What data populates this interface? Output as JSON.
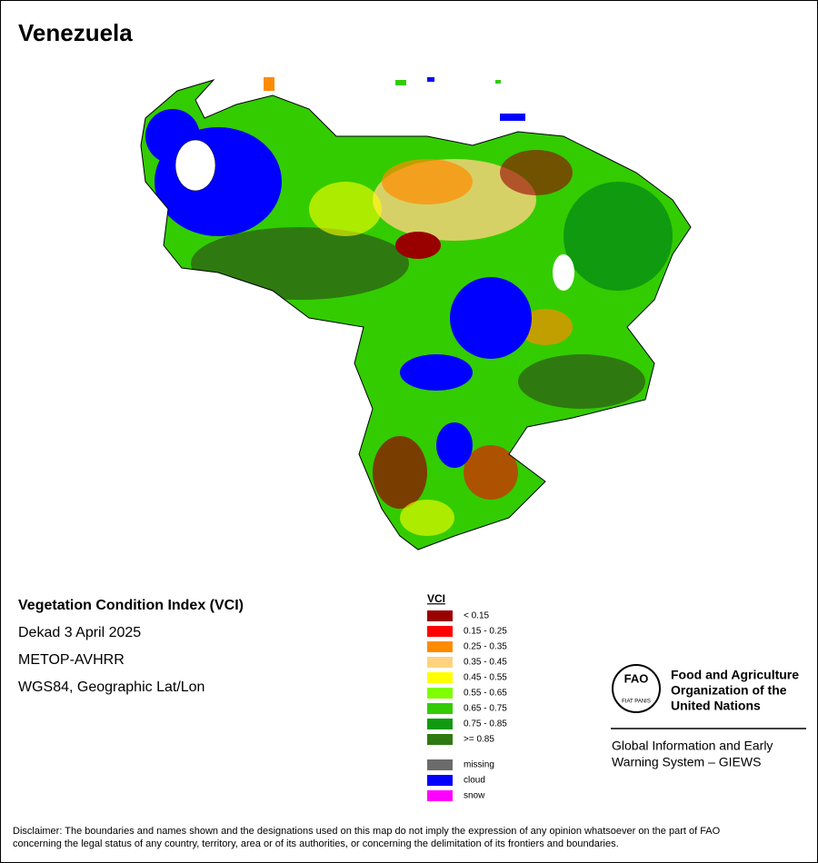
{
  "title": "Venezuela",
  "info": {
    "index_name": "Vegetation Condition Index (VCI)",
    "period": "Dekad 3 April 2025",
    "sensor": "METOP-AVHRR",
    "projection": "WGS84, Geographic Lat/Lon"
  },
  "legend": {
    "title": "VCI",
    "classes": [
      {
        "label": "< 0.15",
        "color": "#990000"
      },
      {
        "label": "0.15 - 0.25",
        "color": "#ff0000"
      },
      {
        "label": "0.25 - 0.35",
        "color": "#ff8c00"
      },
      {
        "label": "0.35 - 0.45",
        "color": "#ffd27f"
      },
      {
        "label": "0.45 - 0.55",
        "color": "#ffff00"
      },
      {
        "label": "0.55 - 0.65",
        "color": "#7fff00"
      },
      {
        "label": "0.65 - 0.75",
        "color": "#33cc00"
      },
      {
        "label": "0.75 - 0.85",
        "color": "#109a10"
      },
      {
        "label": ">= 0.85",
        "color": "#2e7a10"
      }
    ],
    "other": [
      {
        "label": "missing",
        "color": "#6b6b6b"
      },
      {
        "label": "cloud",
        "color": "#0000ff"
      },
      {
        "label": "snow",
        "color": "#ff00ff"
      }
    ]
  },
  "logo": {
    "letters": "FAO",
    "motto": "FIAT PANIS",
    "org_lines": [
      "Food and Agriculture",
      "Organization of the",
      "United Nations"
    ]
  },
  "system_lines": [
    "Global Information and Early",
    "Warning System – GIEWS"
  ],
  "disclaimer_lines": [
    "Disclaimer: The boundaries and names shown and the designations used on this map do not imply the expression of any opinion whatsoever on the part of FAO",
    "concerning the legal status of any country, territory, area or of its authorities, or concerning the delimitation of its frontiers and boundaries."
  ]
}
